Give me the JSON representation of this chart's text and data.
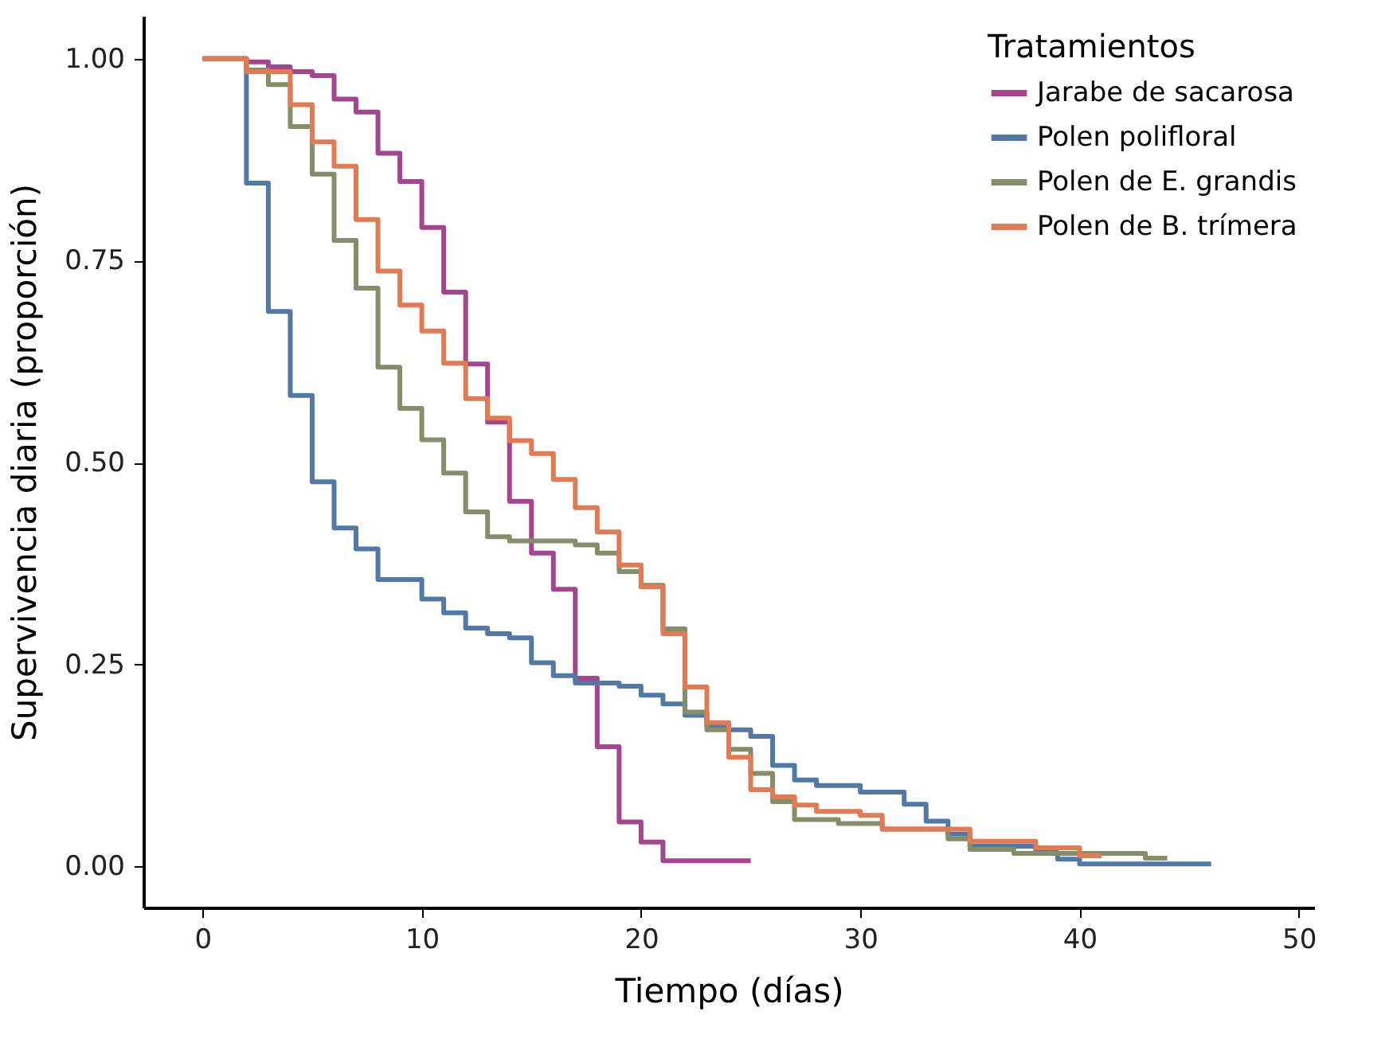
{
  "chart_data": {
    "type": "step",
    "xlabel": "Tiempo (días)",
    "ylabel": "Supervivencia diaria (proporción)",
    "legend_title": "Tratamientos",
    "legend": "top right",
    "grid": false,
    "line_style": "solid",
    "marker": "none",
    "xlim": [
      -2.7,
      50.7
    ],
    "ylim": [
      -0.051,
      1.053
    ],
    "xticks": [
      0,
      10,
      20,
      30,
      40,
      50
    ],
    "yticks": [
      {
        "value": 0,
        "label": "0.00"
      },
      {
        "value": 0.25,
        "label": "0.25"
      },
      {
        "value": 0.5,
        "label": "0.50"
      },
      {
        "value": 0.75,
        "label": "0.75"
      },
      {
        "value": 1,
        "label": "1.00"
      }
    ],
    "series": [
      {
        "name": "Jarabe de sacarosa",
        "color": "#a4468f",
        "x": [
          0,
          2,
          3,
          4,
          5,
          6,
          7,
          8,
          9,
          10,
          11,
          12,
          13,
          14,
          15,
          16,
          17,
          18,
          19,
          20,
          21,
          25
        ],
        "values": [
          1.0,
          0.996,
          0.99,
          0.984,
          0.979,
          0.95,
          0.934,
          0.883,
          0.848,
          0.791,
          0.711,
          0.622,
          0.55,
          0.452,
          0.388,
          0.343,
          0.233,
          0.148,
          0.055,
          0.03,
          0.007,
          0.007
        ]
      },
      {
        "name": "Polen polifloral",
        "color": "#5279a6",
        "x": [
          0,
          2,
          3,
          4,
          5,
          6,
          7,
          8,
          10,
          11,
          12,
          13,
          14,
          15,
          16,
          17,
          19,
          20,
          21,
          22,
          23,
          24,
          25,
          26,
          27,
          28,
          30,
          32,
          33,
          34,
          35,
          38,
          39,
          40,
          46
        ],
        "values": [
          1.0,
          0.846,
          0.687,
          0.583,
          0.476,
          0.419,
          0.393,
          0.355,
          0.331,
          0.314,
          0.295,
          0.288,
          0.283,
          0.252,
          0.236,
          0.227,
          0.223,
          0.212,
          0.201,
          0.187,
          0.174,
          0.169,
          0.161,
          0.125,
          0.107,
          0.1,
          0.092,
          0.077,
          0.056,
          0.04,
          0.025,
          0.017,
          0.009,
          0.003,
          0.003
        ]
      },
      {
        "name": "Polen de E. grandis",
        "color": "#858e6a",
        "x": [
          0,
          2,
          3,
          4,
          5,
          6,
          7,
          8,
          9,
          10,
          11,
          12,
          13,
          14,
          17,
          18,
          19,
          20,
          21,
          22,
          23,
          24,
          25,
          26,
          27,
          29,
          31,
          34,
          35,
          37,
          43,
          44
        ],
        "values": [
          1.0,
          0.986,
          0.968,
          0.916,
          0.857,
          0.775,
          0.716,
          0.618,
          0.567,
          0.528,
          0.487,
          0.439,
          0.408,
          0.403,
          0.398,
          0.388,
          0.365,
          0.348,
          0.294,
          0.191,
          0.169,
          0.145,
          0.115,
          0.08,
          0.058,
          0.053,
          0.046,
          0.034,
          0.021,
          0.016,
          0.01,
          0.01
        ]
      },
      {
        "name": "Polen de B. trímera",
        "color": "#e07b54",
        "x": [
          0,
          2,
          4,
          5,
          6,
          7,
          8,
          9,
          10,
          11,
          12,
          13,
          14,
          15,
          16,
          17,
          18,
          19,
          20,
          21,
          22,
          23,
          24,
          25,
          26,
          27,
          28,
          30,
          31,
          35,
          38,
          40,
          41
        ],
        "values": [
          1.0,
          0.984,
          0.943,
          0.897,
          0.867,
          0.801,
          0.737,
          0.695,
          0.663,
          0.623,
          0.579,
          0.555,
          0.527,
          0.511,
          0.479,
          0.444,
          0.414,
          0.373,
          0.346,
          0.288,
          0.222,
          0.178,
          0.135,
          0.095,
          0.086,
          0.076,
          0.068,
          0.063,
          0.046,
          0.031,
          0.023,
          0.013,
          0.013
        ]
      }
    ]
  }
}
